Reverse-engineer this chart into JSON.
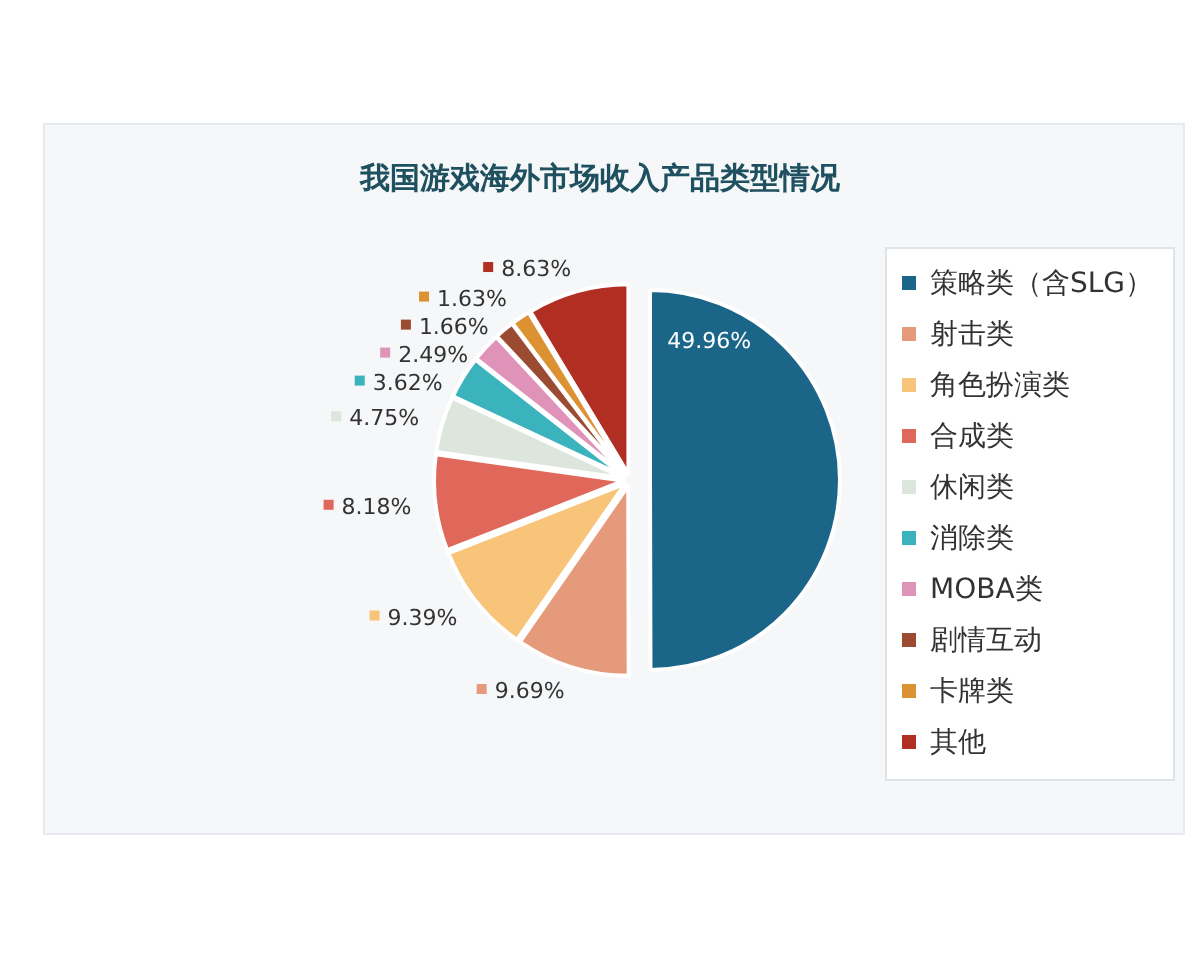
{
  "chart_data": {
    "type": "pie",
    "title": "我国游戏海外市场收入产品类型情况",
    "categories": [
      "策略类（含SLG）",
      "射击类",
      "角色扮演类",
      "合成类",
      "休闲类",
      "消除类",
      "MOBA类",
      "剧情互动",
      "卡牌类",
      "其他"
    ],
    "values": [
      49.96,
      9.69,
      9.39,
      8.18,
      4.75,
      3.62,
      2.49,
      1.66,
      1.63,
      8.63
    ],
    "value_labels": [
      "49.96%",
      "9.69%",
      "9.39%",
      "8.18%",
      "4.75%",
      "3.62%",
      "2.49%",
      "1.66%",
      "1.63%",
      "8.63%"
    ],
    "colors": [
      "#1b6688",
      "#e59a7c",
      "#f7c47a",
      "#e0685a",
      "#dce6dc",
      "#3bb3bd",
      "#df93b8",
      "#9a4b32",
      "#dc9232",
      "#b02e22"
    ],
    "legend": "right"
  }
}
